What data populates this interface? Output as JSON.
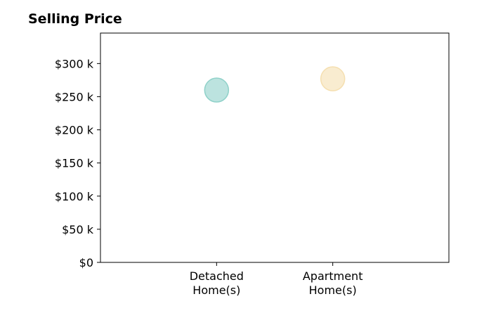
{
  "chart_data": {
    "type": "scatter",
    "title": "Selling Price",
    "xlabel": "",
    "ylabel": "",
    "categories": [
      [
        "Detached",
        "Home(s)"
      ],
      [
        "Apartment",
        "Home(s)"
      ]
    ],
    "values": [
      260000,
      277000
    ],
    "colors": [
      "#8fd1c9",
      "#f5dfb0"
    ],
    "y_ticks": [
      0,
      50000,
      100000,
      150000,
      200000,
      250000,
      300000
    ],
    "y_tick_labels": [
      "$0",
      "$50 k",
      "$100 k",
      "$150 k",
      "$200 k",
      "$250 k",
      "$300 k"
    ],
    "ylim": [
      0,
      346000
    ],
    "x_range": [
      0,
      3
    ],
    "grid": false,
    "legend": "none"
  }
}
